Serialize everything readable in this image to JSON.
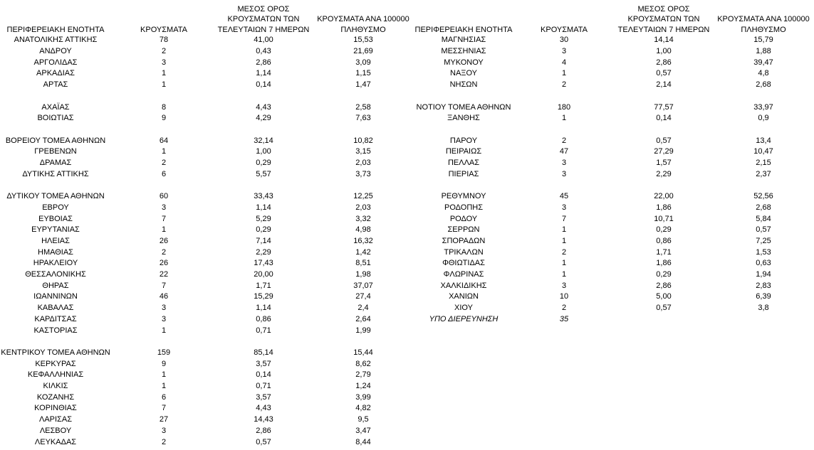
{
  "tables": [
    {
      "header": [
        "ΠΕΡΙΦΕΡΕΙΑΚΗ ΕΝΟΤΗΤΑ",
        "ΚΡΟΥΣΜΑΤΑ",
        "ΜΕΣΟΣ ΟΡΟΣ ΚΡΟΥΣΜΑΤΩΝ ΤΩΝ ΤΕΛΕΥΤΑΙΩΝ 7 ΗΜΕΡΩΝ",
        "ΚΡΟΥΣΜΑΤΑ ΑΝΑ 100000 ΠΛΗΘΥΣΜΟ"
      ],
      "groups": [
        [
          [
            "ΑΝΑΤΟΛΙΚΗΣ ΑΤΤΙΚΗΣ",
            "78",
            "41,00",
            "15,53"
          ],
          [
            "ΑΝΔΡΟΥ",
            "2",
            "0,43",
            "21,69"
          ],
          [
            "ΑΡΓΟΛΙΔΑΣ",
            "3",
            "2,86",
            "3,09"
          ],
          [
            "ΑΡΚΑΔΙΑΣ",
            "1",
            "1,14",
            "1,15"
          ],
          [
            "ΑΡΤΑΣ",
            "1",
            "0,14",
            "1,47"
          ]
        ],
        [
          [
            "ΑΧΑΪΑΣ",
            "8",
            "4,43",
            "2,58"
          ],
          [
            "ΒΟΙΩΤΙΑΣ",
            "9",
            "4,29",
            "7,63"
          ]
        ],
        [
          [
            "ΒΟΡΕΙΟΥ ΤΟΜΕΑ ΑΘΗΝΩΝ",
            "64",
            "32,14",
            "10,82"
          ],
          [
            "ΓΡΕΒΕΝΩΝ",
            "1",
            "1,00",
            "3,15"
          ],
          [
            "ΔΡΑΜΑΣ",
            "2",
            "0,29",
            "2,03"
          ],
          [
            "ΔΥΤΙΚΗΣ ΑΤΤΙΚΗΣ",
            "6",
            "5,57",
            "3,73"
          ]
        ],
        [
          [
            "ΔΥΤΙΚΟΥ ΤΟΜΕΑ ΑΘΗΝΩΝ",
            "60",
            "33,43",
            "12,25"
          ],
          [
            "ΕΒΡΟΥ",
            "3",
            "1,14",
            "2,03"
          ],
          [
            "ΕΥΒΟΙΑΣ",
            "7",
            "5,29",
            "3,32"
          ],
          [
            "ΕΥΡΥΤΑΝΙΑΣ",
            "1",
            "0,29",
            "4,98"
          ],
          [
            "ΗΛΕΙΑΣ",
            "26",
            "7,14",
            "16,32"
          ],
          [
            "ΗΜΑΘΙΑΣ",
            "2",
            "2,29",
            "1,42"
          ],
          [
            "ΗΡΑΚΛΕΙΟΥ",
            "26",
            "17,43",
            "8,51"
          ],
          [
            "ΘΕΣΣΑΛΟΝΙΚΗΣ",
            "22",
            "20,00",
            "1,98"
          ],
          [
            "ΘΗΡΑΣ",
            "7",
            "1,71",
            "37,07"
          ],
          [
            "ΙΩΑΝΝΙΝΩΝ",
            "46",
            "15,29",
            "27,4"
          ],
          [
            "ΚΑΒΑΛΑΣ",
            "3",
            "1,14",
            "2,4"
          ],
          [
            "ΚΑΡΔΙΤΣΑΣ",
            "3",
            "0,86",
            "2,64"
          ],
          [
            "ΚΑΣΤΟΡΙΑΣ",
            "1",
            "0,71",
            "1,99"
          ]
        ],
        [
          [
            "ΚΕΝΤΡΙΚΟΥ ΤΟΜΕΑ ΑΘΗΝΩΝ",
            "159",
            "85,14",
            "15,44"
          ],
          [
            "ΚΕΡΚΥΡΑΣ",
            "9",
            "3,57",
            "8,62"
          ],
          [
            "ΚΕΦΑΛΛΗΝΙΑΣ",
            "1",
            "0,14",
            "2,79"
          ],
          [
            "ΚΙΛΚΙΣ",
            "1",
            "0,71",
            "1,24"
          ],
          [
            "ΚΟΖΑΝΗΣ",
            "6",
            "3,57",
            "3,99"
          ],
          [
            "ΚΟΡΙΝΘΙΑΣ",
            "7",
            "4,43",
            "4,82"
          ],
          [
            "ΛΑΡΙΣΑΣ",
            "27",
            "14,43",
            "9,5"
          ],
          [
            "ΛΕΣΒΟΥ",
            "3",
            "2,86",
            "3,47"
          ],
          [
            "ΛΕΥΚΑΔΑΣ",
            "2",
            "0,57",
            "8,44"
          ]
        ]
      ]
    },
    {
      "header": [
        "ΠΕΡΙΦΕΡΕΙΑΚΗ ΕΝΟΤΗΤΑ",
        "ΚΡΟΥΣΜΑΤΑ",
        "ΜΕΣΟΣ ΟΡΟΣ ΚΡΟΥΣΜΑΤΩΝ ΤΩΝ ΤΕΛΕΥΤΑΙΩΝ 7 ΗΜΕΡΩΝ",
        "ΚΡΟΥΣΜΑΤΑ ΑΝΑ 100000 ΠΛΗΘΥΣΜΟ"
      ],
      "groups": [
        [
          [
            "ΜΑΓΝΗΣΙΑΣ",
            "30",
            "14,14",
            "15,79"
          ],
          [
            "ΜΕΣΣΗΝΙΑΣ",
            "3",
            "1,00",
            "1,88"
          ],
          [
            "ΜΥΚΟΝΟΥ",
            "4",
            "2,86",
            "39,47"
          ],
          [
            "ΝΑΞΟΥ",
            "1",
            "0,57",
            "4,8"
          ],
          [
            "ΝΗΣΩΝ",
            "2",
            "2,14",
            "2,68"
          ]
        ],
        [
          [
            "ΝΟΤΙΟΥ ΤΟΜΕΑ ΑΘΗΝΩΝ",
            "180",
            "77,57",
            "33,97"
          ],
          [
            "ΞΑΝΘΗΣ",
            "1",
            "0,14",
            "0,9"
          ]
        ],
        [
          [
            "ΠΑΡΟΥ",
            "2",
            "0,57",
            "13,4"
          ],
          [
            "ΠΕΙΡΑΙΩΣ",
            "47",
            "27,29",
            "10,47"
          ],
          [
            "ΠΕΛΛΑΣ",
            "3",
            "1,57",
            "2,15"
          ],
          [
            "ΠΙΕΡΙΑΣ",
            "3",
            "2,29",
            "2,37"
          ]
        ],
        [
          [
            "ΡΕΘΥΜΝΟΥ",
            "45",
            "22,00",
            "52,56"
          ],
          [
            "ΡΟΔΟΠΗΣ",
            "3",
            "1,86",
            "2,68"
          ],
          [
            "ΡΟΔΟΥ",
            "7",
            "10,71",
            "5,84"
          ],
          [
            "ΣΕΡΡΩΝ",
            "1",
            "0,29",
            "0,57"
          ],
          [
            "ΣΠΟΡΑΔΩΝ",
            "1",
            "0,86",
            "7,25"
          ],
          [
            "ΤΡΙΚΑΛΩΝ",
            "2",
            "1,71",
            "1,53"
          ],
          [
            "ΦΘΙΩΤΙΔΑΣ",
            "1",
            "1,86",
            "0,63"
          ],
          [
            "ΦΛΩΡΙΝΑΣ",
            "1",
            "0,29",
            "1,94"
          ],
          [
            "ΧΑΛΚΙΔΙΚΗΣ",
            "3",
            "2,86",
            "2,83"
          ],
          [
            "ΧΑΝΙΩΝ",
            "10",
            "5,00",
            "6,39"
          ],
          [
            "ΧΙΟΥ",
            "2",
            "0,57",
            "3,8"
          ]
        ]
      ],
      "note": {
        "label": "ΥΠΟ ΔΙΕΡΕΥΝΗΣΗ",
        "cases": "35"
      }
    }
  ]
}
